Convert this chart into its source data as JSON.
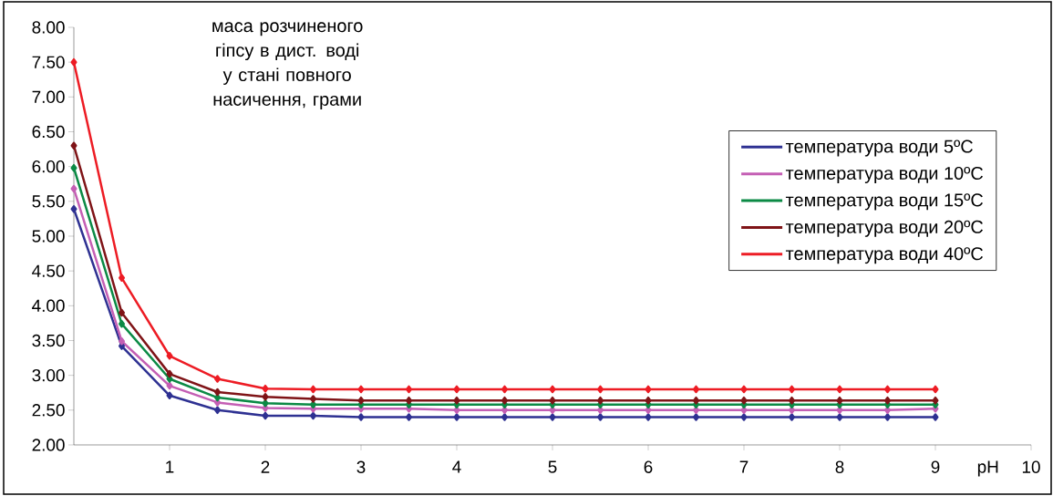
{
  "chart_data": {
    "type": "line",
    "ylabel": "маса розчиненого гіпсу в дист. воді у стані повного насичення, грами",
    "xlabel": "pH",
    "x": [
      0,
      0.5,
      1,
      1.5,
      2,
      2.5,
      3,
      3.5,
      4,
      4.5,
      5,
      5.5,
      6,
      6.5,
      7,
      7.5,
      8,
      8.5,
      9
    ],
    "xlim": [
      0,
      10
    ],
    "xticks": [
      1,
      2,
      3,
      4,
      5,
      6,
      7,
      8,
      9,
      10
    ],
    "ylim": [
      2,
      8
    ],
    "yticks": [
      {
        "value": 2,
        "label": "2.00"
      },
      {
        "value": 2.5,
        "label": "2.50"
      },
      {
        "value": 3,
        "label": "3.00"
      },
      {
        "value": 3.5,
        "label": "3.50"
      },
      {
        "value": 4,
        "label": "4.00"
      },
      {
        "value": 4.5,
        "label": "4.50"
      },
      {
        "value": 5,
        "label": "5.00"
      },
      {
        "value": 5.5,
        "label": "5.50"
      },
      {
        "value": 6,
        "label": "6.00"
      },
      {
        "value": 6.5,
        "label": "6.50"
      },
      {
        "value": 7,
        "label": "7.00"
      },
      {
        "value": 7.5,
        "label": "7.50"
      },
      {
        "value": 8,
        "label": "8.00"
      }
    ],
    "marker": "diamond",
    "line_style": "solid",
    "grid": false,
    "legend": "top right",
    "series": [
      {
        "name": "температура води 5ºС",
        "color": "#2e3192",
        "values": [
          5.39,
          3.42,
          2.71,
          2.5,
          2.42,
          2.42,
          2.4,
          2.4,
          2.4,
          2.4,
          2.4,
          2.4,
          2.4,
          2.4,
          2.4,
          2.4,
          2.4,
          2.4,
          2.4
        ]
      },
      {
        "name": "температура води 10ºС",
        "color": "#c45fb4",
        "values": [
          5.68,
          3.49,
          2.85,
          2.61,
          2.53,
          2.52,
          2.52,
          2.52,
          2.5,
          2.5,
          2.5,
          2.5,
          2.5,
          2.5,
          2.5,
          2.5,
          2.5,
          2.5,
          2.52
        ]
      },
      {
        "name": "температура води 15ºС",
        "color": "#0b8a45",
        "values": [
          5.98,
          3.74,
          2.95,
          2.68,
          2.6,
          2.58,
          2.58,
          2.58,
          2.58,
          2.58,
          2.58,
          2.58,
          2.58,
          2.58,
          2.58,
          2.58,
          2.58,
          2.58,
          2.58
        ]
      },
      {
        "name": "температура води 20ºС",
        "color": "#7f1417",
        "values": [
          6.3,
          3.9,
          3.02,
          2.76,
          2.69,
          2.66,
          2.64,
          2.64,
          2.64,
          2.64,
          2.64,
          2.64,
          2.64,
          2.64,
          2.64,
          2.64,
          2.64,
          2.64,
          2.64
        ]
      },
      {
        "name": "температура води 40ºС",
        "color": "#ed1c24",
        "values": [
          7.5,
          4.4,
          3.28,
          2.95,
          2.81,
          2.8,
          2.8,
          2.8,
          2.8,
          2.8,
          2.8,
          2.8,
          2.8,
          2.8,
          2.8,
          2.8,
          2.8,
          2.8,
          2.8
        ]
      }
    ]
  }
}
